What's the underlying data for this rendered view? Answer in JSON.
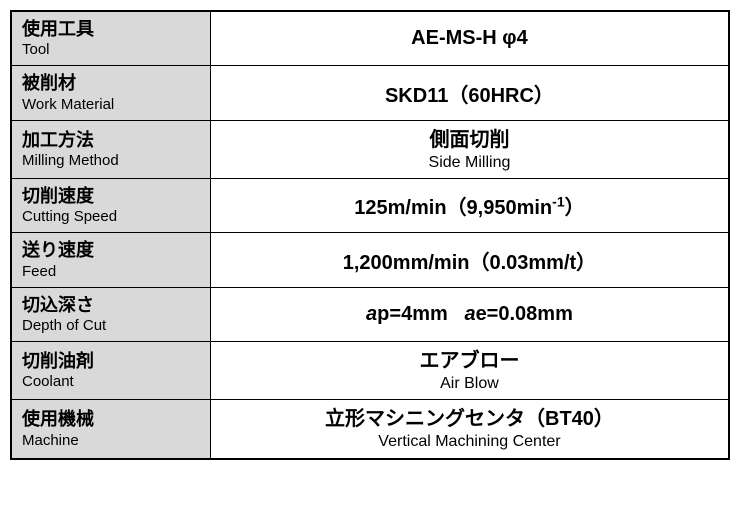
{
  "table": {
    "border_color": "#000000",
    "label_bg": "#d9d9d9",
    "value_bg": "#ffffff",
    "label_jp_fontsize": 18,
    "label_en_fontsize": 15,
    "value_jp_fontsize": 20,
    "value_en_fontsize": 16,
    "label_column_width": 200,
    "value_column_width": 520,
    "rows": [
      {
        "label_jp": "使用工具",
        "label_en": "Tool",
        "value_jp": "AE-MS-H  φ4",
        "value_en": ""
      },
      {
        "label_jp": "被削材",
        "label_en": "Work Material",
        "value_jp": "SKD11（60HRC）",
        "value_en": ""
      },
      {
        "label_jp": "加工方法",
        "label_en": "Milling Method",
        "value_jp": "側面切削",
        "value_en": "Side Milling"
      },
      {
        "label_jp": "切削速度",
        "label_en": "Cutting Speed",
        "value_jp_html": "125m/min（9,950min<sup>-1</sup>）",
        "value_en": ""
      },
      {
        "label_jp": "送り速度",
        "label_en": "Feed",
        "value_jp": "1,200mm/min（0.03mm/t）",
        "value_en": ""
      },
      {
        "label_jp": "切込深さ",
        "label_en": "Depth of Cut",
        "value_jp_html": "<span class=\"italic-var\">a</span>p=4mm&nbsp;&nbsp;&nbsp;<span class=\"italic-var\">a</span>e=0.08mm",
        "value_en": ""
      },
      {
        "label_jp": "切削油剤",
        "label_en": "Coolant",
        "value_jp": "エアブロー",
        "value_en": "Air Blow"
      },
      {
        "label_jp": "使用機械",
        "label_en": "Machine",
        "value_jp": "立形マシニングセンタ（BT40）",
        "value_en": "Vertical Machining Center"
      }
    ]
  }
}
